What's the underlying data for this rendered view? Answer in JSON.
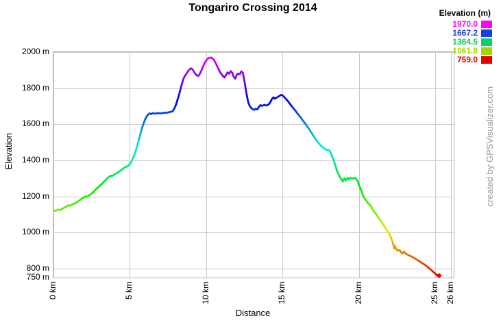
{
  "title": "Tongariro Crossing 2014",
  "watermark": "created by GPSVisualizer.com",
  "legend": {
    "title": "Elevation (m)",
    "entries": [
      {
        "value": "1970.0",
        "color": "#ff00ff"
      },
      {
        "value": "1667.2",
        "color": "#1e3ce6"
      },
      {
        "value": "1364.5",
        "color": "#00d465"
      },
      {
        "value": "1061.8",
        "color": "#a6d600"
      },
      {
        "value": "759.0",
        "color": "#e60000"
      }
    ]
  },
  "chart_data": {
    "type": "line",
    "title": "Tongariro Crossing 2014",
    "xlabel": "Distance",
    "ylabel": "Elevation",
    "x_unit": "km",
    "y_unit": "m",
    "xlim": [
      0,
      26.2
    ],
    "ylim": [
      750,
      2000
    ],
    "grid": true,
    "legend_position": "top-right",
    "x_ticks": {
      "values": [
        0,
        5,
        10,
        15,
        20,
        25,
        26
      ],
      "labels": [
        "0 km",
        "5 km",
        "10 km",
        "15 km",
        "20 km",
        "25 km",
        "26 km"
      ]
    },
    "y_ticks": {
      "values": [
        2000,
        1800,
        1600,
        1400,
        1200,
        1000,
        800,
        750
      ],
      "labels": [
        "2000 m",
        "1800 m",
        "1600 m",
        "1400 m",
        "1200 m",
        "1000 m",
        "800 m",
        "750 m"
      ]
    },
    "colors": {
      "grid": "#c9c9c9",
      "border": "#b0b0b0",
      "background": "#ffffff"
    },
    "color_scale": {
      "description": "line colored by elevation, rainbow hue ramp",
      "min_value": 759.0,
      "max_value": 1970.0,
      "min_hue": 0,
      "max_hue": 300,
      "saturation": "100%",
      "lightness": "46%"
    },
    "series": [
      {
        "name": "Elevation (m)",
        "points": [
          [
            0,
            1122
          ],
          [
            0.15,
            1120
          ],
          [
            0.3,
            1127
          ],
          [
            0.45,
            1125
          ],
          [
            0.6,
            1133
          ],
          [
            0.75,
            1139
          ],
          [
            0.9,
            1147
          ],
          [
            1.0,
            1151
          ],
          [
            1.1,
            1149
          ],
          [
            1.25,
            1157
          ],
          [
            1.4,
            1161
          ],
          [
            1.5,
            1166
          ],
          [
            1.65,
            1175
          ],
          [
            1.8,
            1184
          ],
          [
            1.95,
            1193
          ],
          [
            2.1,
            1200
          ],
          [
            2.2,
            1198
          ],
          [
            2.3,
            1204
          ],
          [
            2.45,
            1213
          ],
          [
            2.6,
            1223
          ],
          [
            2.75,
            1237
          ],
          [
            2.9,
            1249
          ],
          [
            3.0,
            1257
          ],
          [
            3.15,
            1267
          ],
          [
            3.3,
            1281
          ],
          [
            3.45,
            1295
          ],
          [
            3.6,
            1306
          ],
          [
            3.75,
            1315
          ],
          [
            3.85,
            1313
          ],
          [
            4.0,
            1323
          ],
          [
            4.15,
            1329
          ],
          [
            4.3,
            1337
          ],
          [
            4.45,
            1347
          ],
          [
            4.6,
            1357
          ],
          [
            4.75,
            1363
          ],
          [
            4.9,
            1371
          ],
          [
            5.0,
            1379
          ],
          [
            5.1,
            1393
          ],
          [
            5.2,
            1411
          ],
          [
            5.3,
            1431
          ],
          [
            5.4,
            1456
          ],
          [
            5.5,
            1486
          ],
          [
            5.6,
            1519
          ],
          [
            5.7,
            1549
          ],
          [
            5.8,
            1579
          ],
          [
            5.9,
            1604
          ],
          [
            6.0,
            1626
          ],
          [
            6.1,
            1643
          ],
          [
            6.2,
            1654
          ],
          [
            6.3,
            1660
          ],
          [
            6.4,
            1656
          ],
          [
            6.5,
            1662
          ],
          [
            6.65,
            1659
          ],
          [
            6.8,
            1662
          ],
          [
            7.0,
            1660
          ],
          [
            7.2,
            1663
          ],
          [
            7.4,
            1664
          ],
          [
            7.6,
            1667
          ],
          [
            7.8,
            1672
          ],
          [
            7.9,
            1685
          ],
          [
            8.0,
            1704
          ],
          [
            8.1,
            1729
          ],
          [
            8.2,
            1758
          ],
          [
            8.3,
            1789
          ],
          [
            8.4,
            1821
          ],
          [
            8.5,
            1850
          ],
          [
            8.6,
            1868
          ],
          [
            8.7,
            1880
          ],
          [
            8.8,
            1893
          ],
          [
            8.9,
            1904
          ],
          [
            9.0,
            1910
          ],
          [
            9.1,
            1905
          ],
          [
            9.2,
            1890
          ],
          [
            9.3,
            1878
          ],
          [
            9.4,
            1870
          ],
          [
            9.5,
            1869
          ],
          [
            9.6,
            1883
          ],
          [
            9.7,
            1901
          ],
          [
            9.8,
            1921
          ],
          [
            9.9,
            1941
          ],
          [
            10.0,
            1954
          ],
          [
            10.1,
            1963
          ],
          [
            10.2,
            1968
          ],
          [
            10.3,
            1970
          ],
          [
            10.4,
            1965
          ],
          [
            10.5,
            1958
          ],
          [
            10.6,
            1942
          ],
          [
            10.7,
            1925
          ],
          [
            10.8,
            1907
          ],
          [
            10.9,
            1889
          ],
          [
            11.0,
            1878
          ],
          [
            11.1,
            1867
          ],
          [
            11.2,
            1859
          ],
          [
            11.3,
            1874
          ],
          [
            11.4,
            1887
          ],
          [
            11.5,
            1880
          ],
          [
            11.6,
            1894
          ],
          [
            11.7,
            1886
          ],
          [
            11.8,
            1863
          ],
          [
            11.9,
            1853
          ],
          [
            12.0,
            1874
          ],
          [
            12.1,
            1881
          ],
          [
            12.2,
            1877
          ],
          [
            12.3,
            1893
          ],
          [
            12.4,
            1885
          ],
          [
            12.45,
            1863
          ],
          [
            12.55,
            1815
          ],
          [
            12.65,
            1762
          ],
          [
            12.75,
            1722
          ],
          [
            12.85,
            1701
          ],
          [
            12.95,
            1690
          ],
          [
            13.05,
            1683
          ],
          [
            13.15,
            1680
          ],
          [
            13.25,
            1686
          ],
          [
            13.35,
            1682
          ],
          [
            13.45,
            1697
          ],
          [
            13.55,
            1706
          ],
          [
            13.65,
            1702
          ],
          [
            13.8,
            1707
          ],
          [
            13.95,
            1704
          ],
          [
            14.1,
            1711
          ],
          [
            14.2,
            1723
          ],
          [
            14.3,
            1740
          ],
          [
            14.4,
            1749
          ],
          [
            14.5,
            1742
          ],
          [
            14.6,
            1747
          ],
          [
            14.75,
            1755
          ],
          [
            14.9,
            1763
          ],
          [
            15.0,
            1760
          ],
          [
            15.1,
            1751
          ],
          [
            15.25,
            1738
          ],
          [
            15.4,
            1722
          ],
          [
            15.6,
            1700
          ],
          [
            15.8,
            1679
          ],
          [
            16.0,
            1657
          ],
          [
            16.2,
            1635
          ],
          [
            16.35,
            1618
          ],
          [
            16.5,
            1601
          ],
          [
            16.65,
            1584
          ],
          [
            16.8,
            1565
          ],
          [
            17.0,
            1538
          ],
          [
            17.1,
            1525
          ],
          [
            17.2,
            1512
          ],
          [
            17.35,
            1496
          ],
          [
            17.5,
            1482
          ],
          [
            17.65,
            1470
          ],
          [
            17.8,
            1462
          ],
          [
            17.9,
            1456
          ],
          [
            18.0,
            1458
          ],
          [
            18.1,
            1450
          ],
          [
            18.2,
            1432
          ],
          [
            18.3,
            1410
          ],
          [
            18.4,
            1386
          ],
          [
            18.5,
            1358
          ],
          [
            18.6,
            1332
          ],
          [
            18.7,
            1316
          ],
          [
            18.8,
            1300
          ],
          [
            18.95,
            1283
          ],
          [
            19.05,
            1301
          ],
          [
            19.15,
            1289
          ],
          [
            19.25,
            1302
          ],
          [
            19.35,
            1295
          ],
          [
            19.45,
            1304
          ],
          [
            19.6,
            1298
          ],
          [
            19.75,
            1303
          ],
          [
            19.9,
            1288
          ],
          [
            20.0,
            1262
          ],
          [
            20.1,
            1244
          ],
          [
            20.2,
            1220
          ],
          [
            20.3,
            1197
          ],
          [
            20.4,
            1185
          ],
          [
            20.5,
            1174
          ],
          [
            20.6,
            1162
          ],
          [
            20.7,
            1153
          ],
          [
            20.8,
            1143
          ],
          [
            20.9,
            1127
          ],
          [
            21.0,
            1113
          ],
          [
            21.1,
            1105
          ],
          [
            21.2,
            1091
          ],
          [
            21.3,
            1079
          ],
          [
            21.4,
            1068
          ],
          [
            21.5,
            1055
          ],
          [
            21.6,
            1041
          ],
          [
            21.7,
            1030
          ],
          [
            21.8,
            1014
          ],
          [
            21.9,
            1001
          ],
          [
            22.0,
            991
          ],
          [
            22.1,
            972
          ],
          [
            22.2,
            946
          ],
          [
            22.25,
            931
          ],
          [
            22.3,
            913
          ],
          [
            22.35,
            925
          ],
          [
            22.45,
            906
          ],
          [
            22.55,
            899
          ],
          [
            22.65,
            904
          ],
          [
            22.75,
            891
          ],
          [
            22.85,
            885
          ],
          [
            22.95,
            894
          ],
          [
            23.05,
            883
          ],
          [
            23.15,
            879
          ],
          [
            23.25,
            874
          ],
          [
            23.35,
            870
          ],
          [
            23.5,
            864
          ],
          [
            23.65,
            857
          ],
          [
            23.8,
            848
          ],
          [
            23.95,
            841
          ],
          [
            24.1,
            832
          ],
          [
            24.25,
            824
          ],
          [
            24.4,
            815
          ],
          [
            24.55,
            805
          ],
          [
            24.7,
            794
          ],
          [
            24.85,
            783
          ],
          [
            24.95,
            775
          ],
          [
            25.05,
            767
          ],
          [
            25.15,
            760
          ],
          [
            25.2,
            757
          ],
          [
            25.24,
            761
          ]
        ]
      }
    ]
  }
}
